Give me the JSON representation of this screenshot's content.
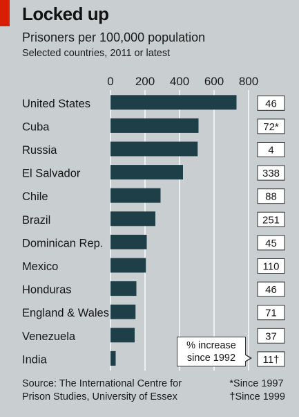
{
  "header": {
    "title": "Locked up",
    "subtitle": "Prisoners per 100,000 population",
    "subsubtitle": "Selected countries, 2011 or latest"
  },
  "source": {
    "line1": "Source: The International Centre for",
    "line2": "Prison Studies, University of Essex"
  },
  "footnotes": {
    "since1997": "*Since 1997",
    "since1999": "†Since 1999"
  },
  "callout": {
    "line1": "% increase",
    "line2": "since 1992"
  },
  "colors": {
    "bar": "#1e3e48",
    "background": "#c9ced1",
    "accent_red": "#d81e05",
    "box_fill": "#ffffff"
  },
  "chart_data": {
    "type": "bar",
    "orientation": "horizontal",
    "title": "Locked up",
    "subtitle": "Prisoners per 100,000 population",
    "categories": [
      "United States",
      "Cuba",
      "Russia",
      "El Salvador",
      "Chile",
      "Brazil",
      "Dominican Rep.",
      "Mexico",
      "Honduras",
      "England & Wales",
      "Venezuela",
      "India"
    ],
    "values": [
      730,
      510,
      505,
      420,
      290,
      260,
      210,
      205,
      150,
      145,
      140,
      30
    ],
    "increase_labels": [
      "46",
      "72*",
      "4",
      "338",
      "88",
      "251",
      "45",
      "110",
      "46",
      "71",
      "37",
      "11†"
    ],
    "xticks": [
      "0",
      "200",
      "400",
      "600",
      "800"
    ],
    "xlim": [
      0,
      800
    ],
    "grid": true,
    "xlabel": "",
    "ylabel": ""
  }
}
